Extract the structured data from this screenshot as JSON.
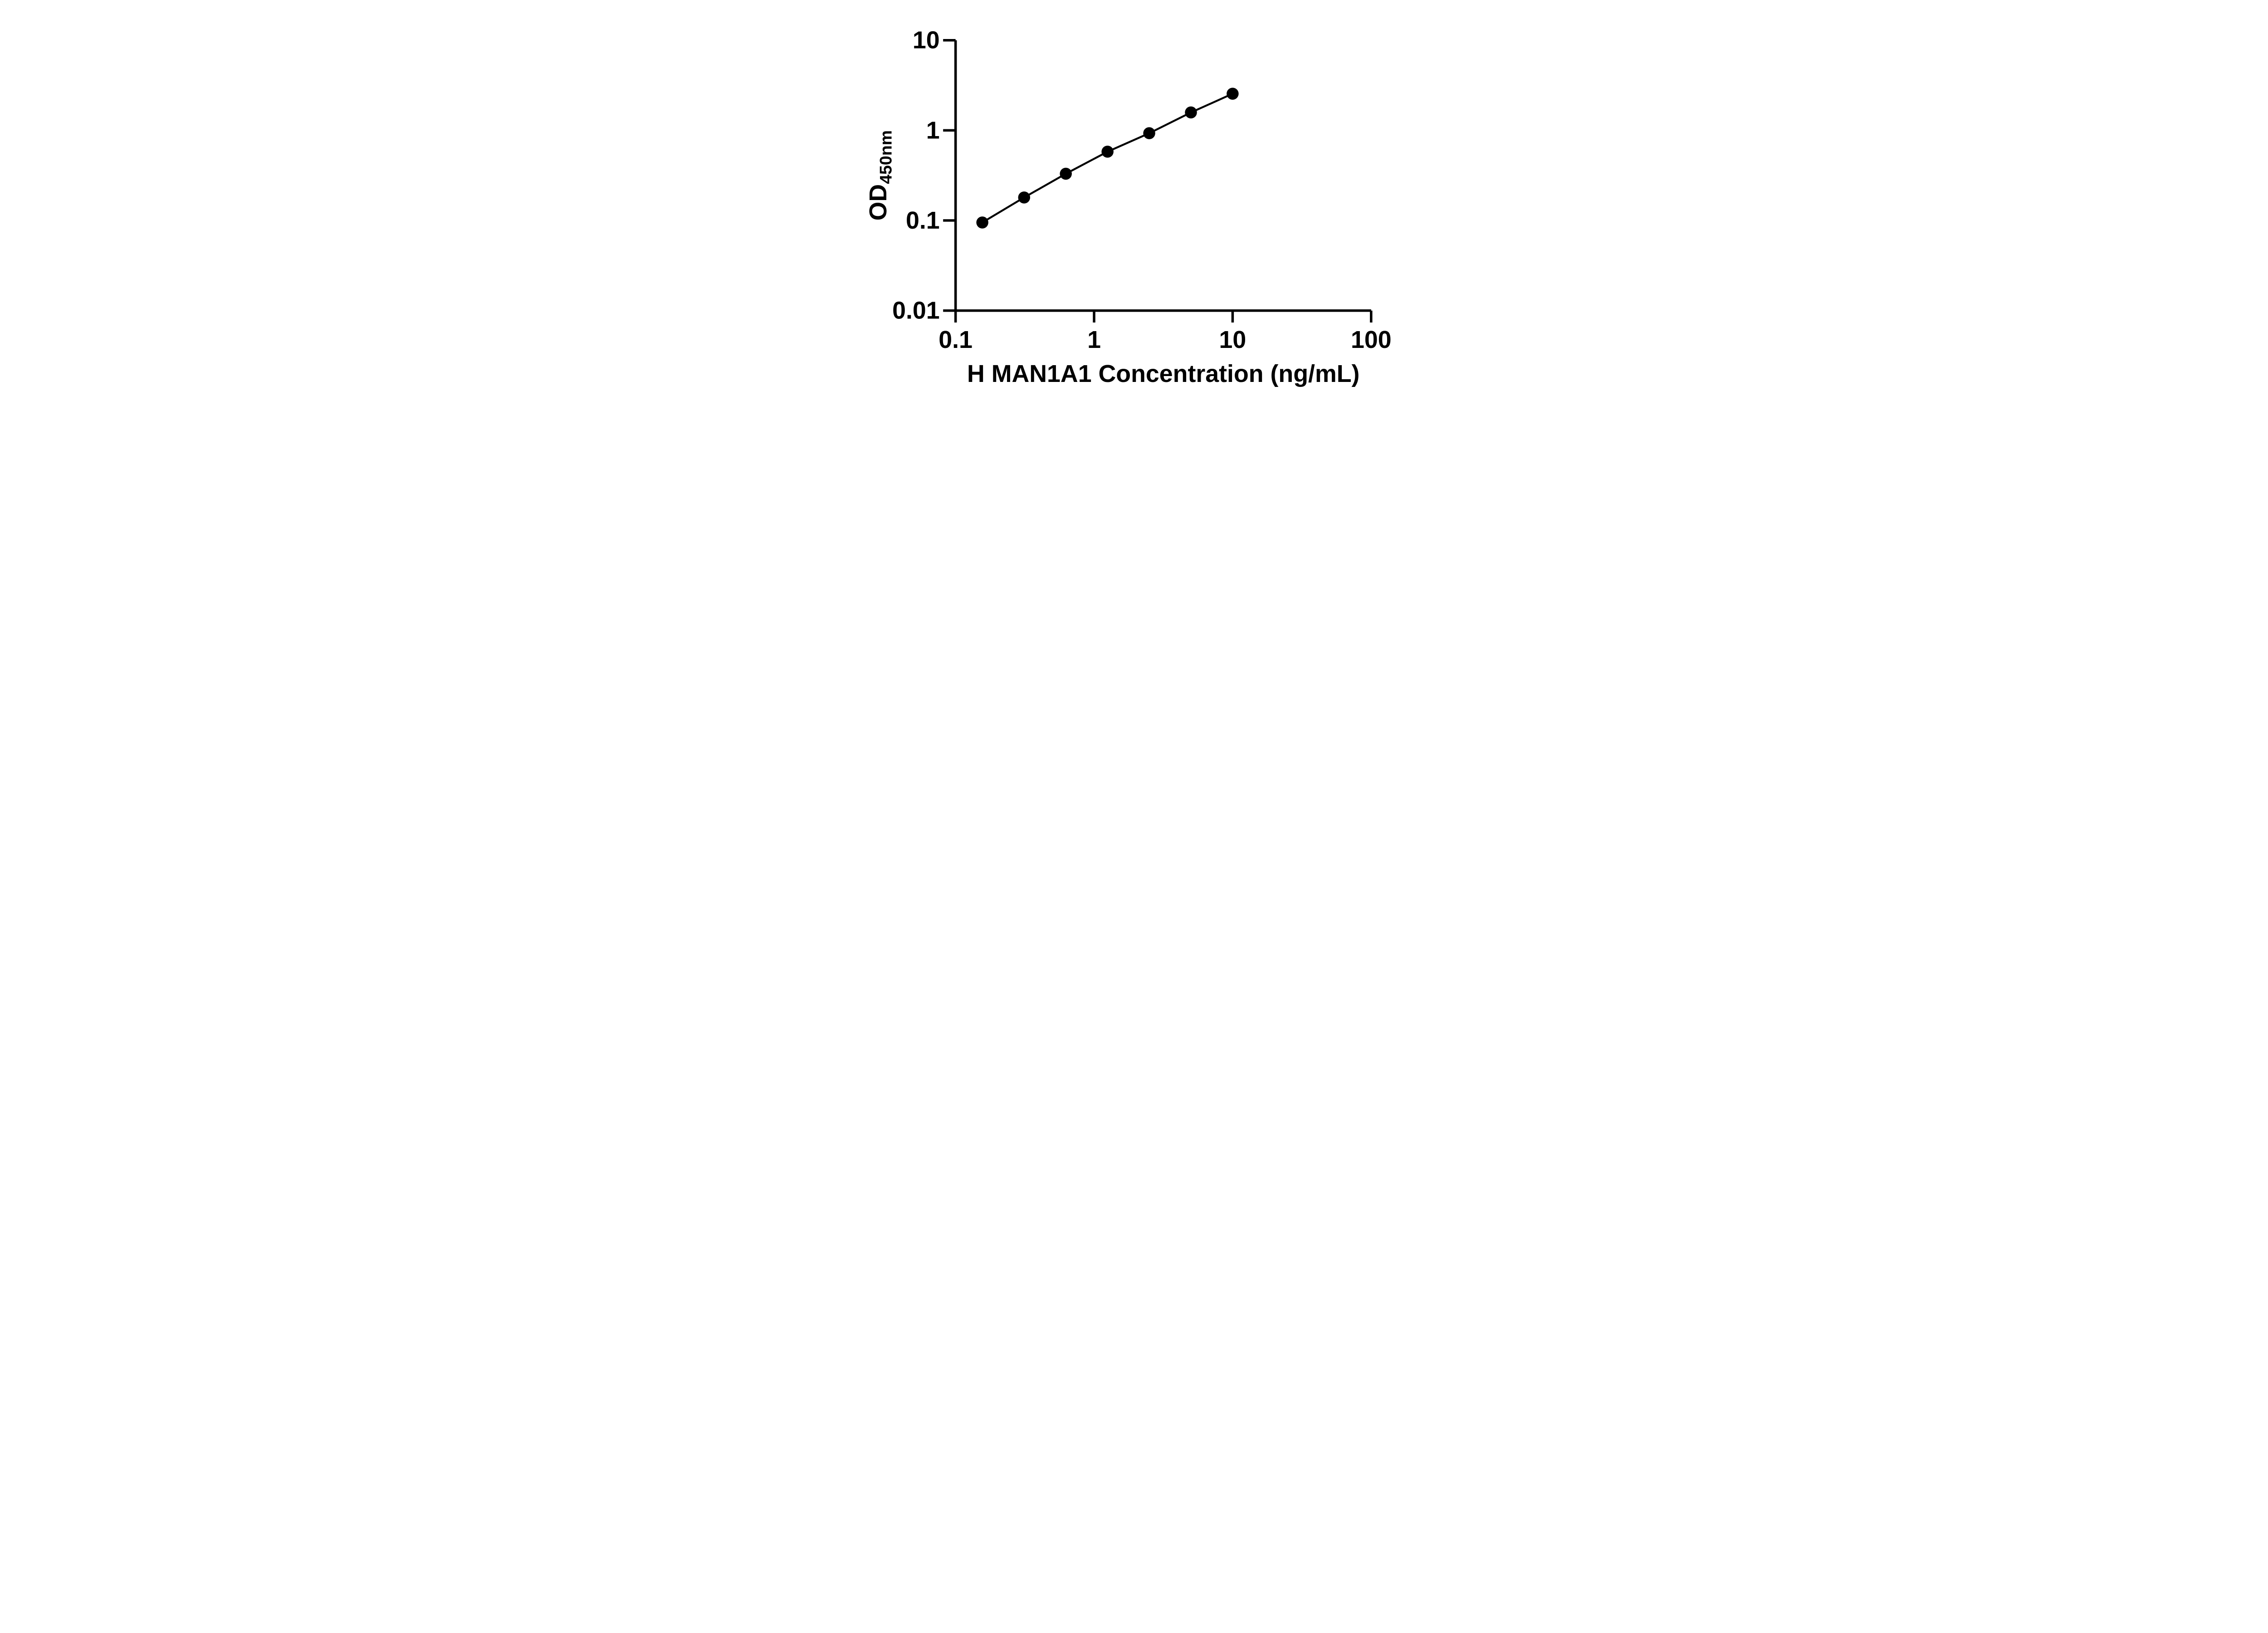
{
  "chart_data": {
    "type": "scatter",
    "title": "",
    "xlabel": "H MAN1A1 Concentration (ng/mL)",
    "ylabel_main": "OD",
    "ylabel_sub": "450nm",
    "grid": false,
    "legend_position": "none",
    "x_axis": {
      "scale": "log",
      "range": [
        0.1,
        100
      ],
      "ticks": [
        {
          "value": 0.1,
          "label": "0.1"
        },
        {
          "value": 1,
          "label": "1"
        },
        {
          "value": 10,
          "label": "10"
        },
        {
          "value": 100,
          "label": "100"
        }
      ]
    },
    "y_axis": {
      "scale": "log",
      "range": [
        0.01,
        10
      ],
      "ticks": [
        {
          "value": 10,
          "label": "10"
        },
        {
          "value": 1,
          "label": "1"
        },
        {
          "value": 0.1,
          "label": "0.1"
        },
        {
          "value": 0.01,
          "label": "0.01"
        }
      ]
    },
    "series": [
      {
        "marker": "filled-circle",
        "line": "solid",
        "x": [
          0.156,
          0.3125,
          0.625,
          1.25,
          2.5,
          5,
          10
        ],
        "values": [
          0.095,
          0.18,
          0.33,
          0.58,
          0.93,
          1.58,
          2.55
        ]
      }
    ],
    "colors": {
      "foreground": "#000000",
      "background": "#ffffff"
    }
  }
}
